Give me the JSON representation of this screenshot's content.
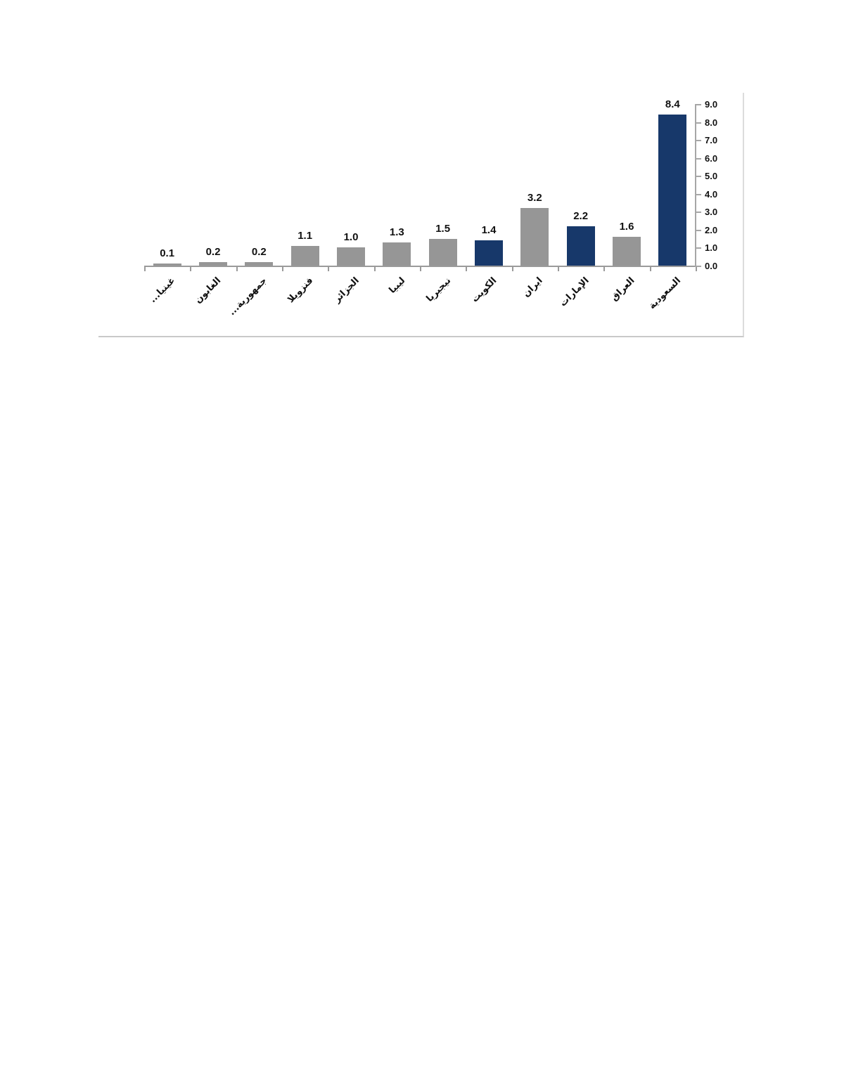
{
  "page": {
    "background_color": "#ffffff"
  },
  "chart_data": {
    "type": "bar",
    "title": "",
    "xlabel": "",
    "ylabel": "",
    "categories": [
      "غينيا...",
      "الغابون",
      "جمهورية...",
      "فنزويلا",
      "الجزائر",
      "ليبيا",
      "نيجيريا",
      "الكويت",
      "ايران",
      "الإمارات",
      "العراق",
      "السعودية"
    ],
    "values": [
      0.1,
      0.2,
      0.2,
      1.1,
      1.0,
      1.3,
      1.5,
      1.4,
      3.2,
      2.2,
      1.6,
      8.4
    ],
    "value_labels": [
      "0.1",
      "0.2",
      "0.2",
      "1.1",
      "1.0",
      "1.3",
      "1.5",
      "1.4",
      "3.2",
      "2.2",
      "1.6",
      "8.4"
    ],
    "bar_color_keys": [
      "gray",
      "gray",
      "gray",
      "gray",
      "gray",
      "gray",
      "gray",
      "navy",
      "gray",
      "navy",
      "gray",
      "navy"
    ],
    "colors": {
      "gray": "#969696",
      "navy": "#17386A"
    },
    "ylim": [
      0.0,
      9.0
    ],
    "ytick_labels": [
      "0.0",
      "1.0",
      "2.0",
      "3.0",
      "4.0",
      "5.0",
      "6.0",
      "7.0",
      "8.0",
      "9.0"
    ],
    "yaxis_side": "right",
    "grid": false,
    "legend": "none",
    "category_label_rotation_deg": -45
  }
}
